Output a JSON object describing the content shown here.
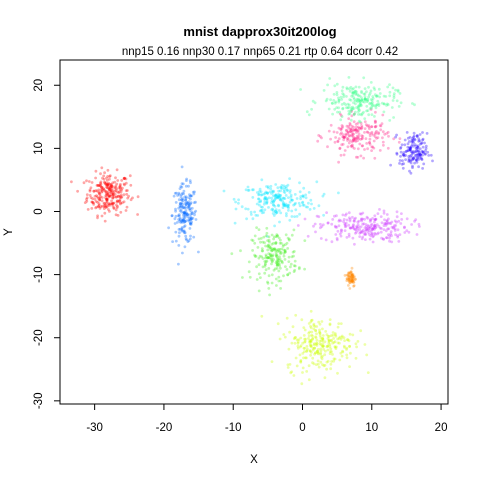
{
  "chart_data": {
    "type": "scatter",
    "title": "mnist dapprox30it200log",
    "subtitle": "nnp15 0.16 nnp30 0.17 nnp65 0.21 rtp 0.64 dcorr 0.42",
    "xlabel": "X",
    "ylabel": "Y",
    "xlim": [
      -35,
      21
    ],
    "ylim": [
      -30.5,
      24
    ],
    "xticks": [
      -30,
      -20,
      -10,
      0,
      10,
      20
    ],
    "yticks": [
      -30,
      -20,
      -10,
      0,
      10,
      20
    ],
    "grid": false,
    "legend": "none",
    "clusters": [
      {
        "color": "#ff0000",
        "center": [
          -28,
          2.8
        ],
        "spread": [
          2.8,
          3.0
        ],
        "points": 260
      },
      {
        "color": "#0066ff",
        "center": [
          -17,
          -0.5
        ],
        "spread": [
          1.6,
          4.2
        ],
        "points": 180
      },
      {
        "color": "#00e5ff",
        "center": [
          -3.5,
          1.8
        ],
        "spread": [
          5.0,
          2.6
        ],
        "points": 220
      },
      {
        "color": "#cc33ff",
        "center": [
          9,
          -2.5
        ],
        "spread": [
          6.0,
          2.2
        ],
        "points": 240
      },
      {
        "color": "#44ee22",
        "center": [
          -4,
          -7
        ],
        "spread": [
          3.0,
          3.6
        ],
        "points": 200
      },
      {
        "color": "#ff2288",
        "center": [
          8,
          12
        ],
        "spread": [
          4.0,
          2.6
        ],
        "points": 200
      },
      {
        "color": "#33ff88",
        "center": [
          8,
          17.5
        ],
        "spread": [
          5.0,
          2.6
        ],
        "points": 220
      },
      {
        "color": "#2200ff",
        "center": [
          16,
          9.5
        ],
        "spread": [
          1.8,
          2.6
        ],
        "points": 150
      },
      {
        "color": "#ff8800",
        "center": [
          7,
          -10.5
        ],
        "spread": [
          0.6,
          1.3
        ],
        "points": 60
      },
      {
        "color": "#ccff00",
        "center": [
          2.5,
          -21
        ],
        "spread": [
          4.5,
          3.8
        ],
        "points": 260
      }
    ]
  }
}
